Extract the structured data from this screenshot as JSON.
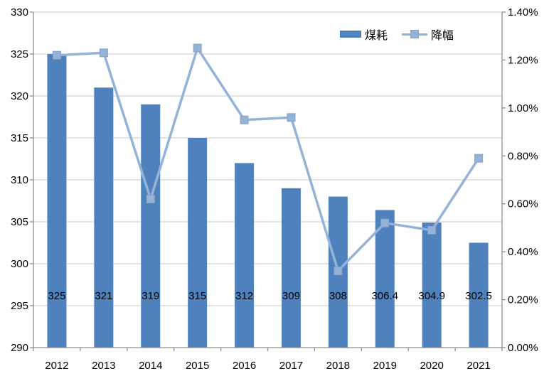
{
  "chart_data": {
    "type": "bar-line-combo",
    "categories": [
      "2012",
      "2013",
      "2014",
      "2015",
      "2016",
      "2017",
      "2018",
      "2019",
      "2020",
      "2021"
    ],
    "series": [
      {
        "name": "煤耗",
        "type": "bar",
        "axis": "left",
        "color": "#4f81bd",
        "values": [
          325,
          321,
          319,
          315,
          312,
          309,
          308,
          306.4,
          304.9,
          302.5
        ],
        "data_labels": [
          "325",
          "321",
          "319",
          "315",
          "312",
          "309",
          "308",
          "306.4",
          "304.9",
          "302.5"
        ]
      },
      {
        "name": "降幅",
        "type": "line",
        "axis": "right",
        "color": "#95b3d7",
        "marker": "square",
        "unit": "%",
        "values": [
          1.22,
          1.23,
          0.62,
          1.25,
          0.95,
          0.96,
          0.32,
          0.52,
          0.49,
          0.79
        ]
      }
    ],
    "left_axis": {
      "min": 290,
      "max": 330,
      "step": 5,
      "tick_labels": [
        "330",
        "325",
        "320",
        "315",
        "310",
        "305",
        "300",
        "295",
        "290"
      ]
    },
    "right_axis": {
      "min": 0.0,
      "max": 1.4,
      "step": 0.2,
      "tick_labels": [
        "1.40%",
        "1.20%",
        "1.00%",
        "0.80%",
        "0.60%",
        "0.40%",
        "0.20%",
        "0.00%"
      ]
    },
    "grid": true,
    "legend_position": "top",
    "title": "",
    "xlabel": "",
    "ylabel": ""
  },
  "colors": {
    "bar": "#4f81bd",
    "line": "#95b3d7",
    "marker_border": "#87a0cc",
    "gridline": "#c9c9c9",
    "axis_line": "#8e8e8e",
    "text": "#000000",
    "background": "#ffffff"
  }
}
